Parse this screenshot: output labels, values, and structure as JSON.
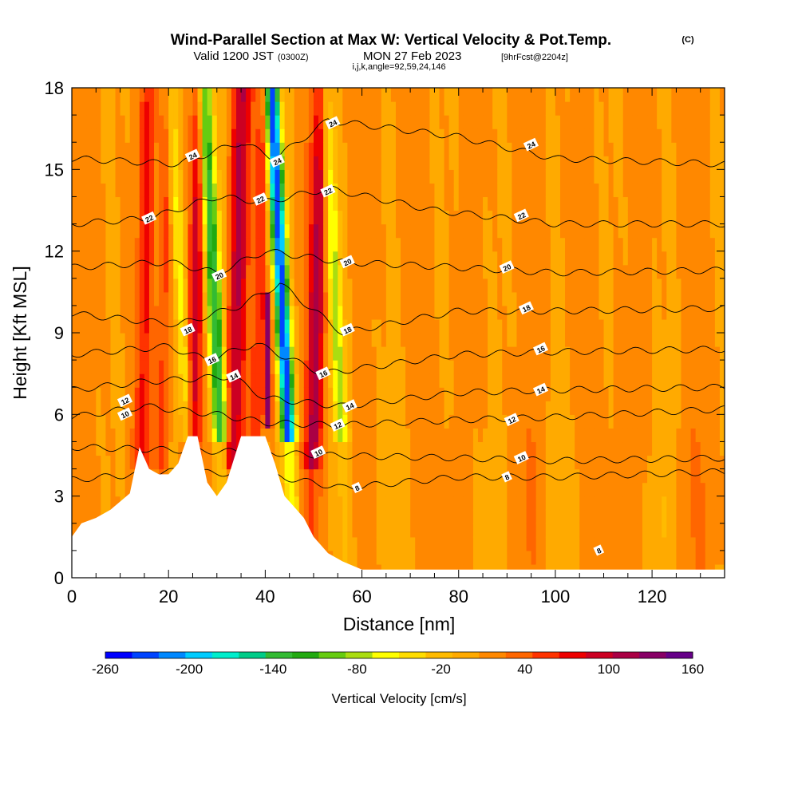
{
  "title": {
    "main": "Wind-Parallel Section at Max W: Vertical Velocity & Pot.Temp.",
    "copyright": "(C)",
    "valid_a": "Valid 1200 JST",
    "valid_b": "(0300Z)",
    "valid_c": "MON 27 Feb 2023",
    "valid_d": "[9hrFcst@2204z]",
    "params": "i,j,k,angle=92,59,24,146"
  },
  "chart_data": {
    "type": "heatmap",
    "xlabel": "Distance [nm]",
    "ylabel": "Height [Kft MSL]",
    "xlim": [
      0,
      135
    ],
    "ylim": [
      0,
      18
    ],
    "x_ticks": [
      0,
      20,
      40,
      60,
      80,
      100,
      120
    ],
    "y_ticks": [
      0,
      3,
      6,
      9,
      12,
      15,
      18
    ],
    "x_tick_labels": [
      "0",
      "20",
      "40",
      "60",
      "80",
      "100",
      "120"
    ],
    "y_tick_labels": [
      "0",
      "3",
      "6",
      "9",
      "12",
      "15",
      "18"
    ],
    "field": "Vertical Velocity",
    "background_velocity": 10,
    "updraft_bands": [
      {
        "center": 15,
        "width": 1.6,
        "amp": 55
      },
      {
        "center": 19,
        "width": 1.4,
        "amp": 45
      },
      {
        "center": 25.5,
        "width": 1.4,
        "amp": 80
      },
      {
        "center": 34,
        "width": 2.0,
        "amp": 95
      },
      {
        "center": 38.5,
        "width": 1.2,
        "amp": 50
      },
      {
        "center": 50.5,
        "width": 1.8,
        "amp": 100
      }
    ],
    "downdraft_bands": [
      {
        "center": 22,
        "width": 1.3,
        "amp": 60
      },
      {
        "center": 29,
        "width": 1.6,
        "amp": 150
      },
      {
        "center": 43,
        "width": 1.5,
        "amp": 240
      },
      {
        "center": 54,
        "width": 1.4,
        "amp": 90
      }
    ],
    "strong_updraft_core": {
      "x": 40.5,
      "y_from": 5.5,
      "y_to": 10.5,
      "value": 160
    },
    "terrain_height_kft": [
      [
        0,
        1.5
      ],
      [
        2,
        2.0
      ],
      [
        5,
        2.2
      ],
      [
        8,
        2.5
      ],
      [
        10,
        2.8
      ],
      [
        12,
        3.1
      ],
      [
        14,
        4.8
      ],
      [
        16,
        4.0
      ],
      [
        18,
        3.8
      ],
      [
        20,
        3.8
      ],
      [
        22,
        4.2
      ],
      [
        24,
        5.2
      ],
      [
        26,
        5.2
      ],
      [
        28,
        3.5
      ],
      [
        30,
        3.0
      ],
      [
        32,
        3.5
      ],
      [
        35,
        5.2
      ],
      [
        40,
        5.2
      ],
      [
        42,
        4.2
      ],
      [
        44,
        3.0
      ],
      [
        46,
        2.6
      ],
      [
        48,
        2.2
      ],
      [
        50,
        1.5
      ],
      [
        53,
        0.9
      ],
      [
        56,
        0.6
      ],
      [
        60,
        0.3
      ],
      [
        135,
        0.3
      ]
    ],
    "theta_contours": [
      {
        "value": 8,
        "heights": [
          [
            0,
            3.6
          ],
          [
            20,
            3.9
          ],
          [
            40,
            3.8
          ],
          [
            56,
            3.3
          ],
          [
            80,
            3.7
          ],
          [
            100,
            3.7
          ],
          [
            135,
            3.9
          ]
        ]
      },
      {
        "value": 10,
        "heights": [
          [
            0,
            4.8
          ],
          [
            20,
            4.7
          ],
          [
            40,
            4.6
          ],
          [
            52,
            4.5
          ],
          [
            80,
            4.4
          ],
          [
            100,
            4.3
          ],
          [
            135,
            4.4
          ]
        ]
      },
      {
        "value": 12,
        "heights": [
          [
            0,
            5.9
          ],
          [
            15,
            6.3
          ],
          [
            30,
            6.0
          ],
          [
            40,
            5.7
          ],
          [
            55,
            5.6
          ],
          [
            80,
            5.8
          ],
          [
            100,
            5.9
          ],
          [
            135,
            6.2
          ]
        ]
      },
      {
        "value": 14,
        "heights": [
          [
            0,
            6.9
          ],
          [
            15,
            7.2
          ],
          [
            33,
            7.4
          ],
          [
            40,
            6.6
          ],
          [
            56,
            6.3
          ],
          [
            80,
            6.8
          ],
          [
            100,
            6.9
          ],
          [
            135,
            7.0
          ]
        ]
      },
      {
        "value": 16,
        "heights": [
          [
            0,
            8.2
          ],
          [
            20,
            8.5
          ],
          [
            28,
            8.0
          ],
          [
            38,
            8.6
          ],
          [
            52,
            7.5
          ],
          [
            80,
            8.2
          ],
          [
            100,
            8.3
          ],
          [
            135,
            8.4
          ]
        ]
      },
      {
        "value": 18,
        "heights": [
          [
            0,
            9.7
          ],
          [
            22,
            9.3
          ],
          [
            35,
            10.0
          ],
          [
            43,
            10.8
          ],
          [
            56,
            9.0
          ],
          [
            80,
            9.8
          ],
          [
            100,
            9.8
          ],
          [
            135,
            9.9
          ]
        ]
      },
      {
        "value": 20,
        "heights": [
          [
            0,
            11.4
          ],
          [
            20,
            11.6
          ],
          [
            30,
            11.2
          ],
          [
            40,
            12.0
          ],
          [
            56,
            11.6
          ],
          [
            80,
            11.4
          ],
          [
            100,
            11.2
          ],
          [
            135,
            11.3
          ]
        ]
      },
      {
        "value": 22,
        "heights": [
          [
            0,
            13.0
          ],
          [
            16,
            13.2
          ],
          [
            30,
            14.0
          ],
          [
            40,
            13.8
          ],
          [
            53,
            14.3
          ],
          [
            75,
            13.5
          ],
          [
            100,
            13.0
          ],
          [
            135,
            13.0
          ]
        ]
      },
      {
        "value": 24,
        "heights": [
          [
            0,
            15.4
          ],
          [
            22,
            15.2
          ],
          [
            35,
            16.0
          ],
          [
            42,
            15.4
          ],
          [
            53,
            16.8
          ],
          [
            80,
            16.2
          ],
          [
            100,
            15.4
          ],
          [
            135,
            15.2
          ]
        ]
      }
    ],
    "contour_labels": [
      {
        "text": "24",
        "x": 25,
        "y": 15.5
      },
      {
        "text": "24",
        "x": 42.5,
        "y": 15.3
      },
      {
        "text": "24",
        "x": 54,
        "y": 16.7
      },
      {
        "text": "24",
        "x": 95,
        "y": 15.9
      },
      {
        "text": "22",
        "x": 16,
        "y": 13.2
      },
      {
        "text": "22",
        "x": 39,
        "y": 13.9
      },
      {
        "text": "22",
        "x": 53,
        "y": 14.2
      },
      {
        "text": "22",
        "x": 93,
        "y": 13.3
      },
      {
        "text": "20",
        "x": 30.5,
        "y": 11.1
      },
      {
        "text": "20",
        "x": 57,
        "y": 11.6
      },
      {
        "text": "20",
        "x": 90,
        "y": 11.4
      },
      {
        "text": "18",
        "x": 24,
        "y": 9.1
      },
      {
        "text": "18",
        "x": 57,
        "y": 9.1
      },
      {
        "text": "18",
        "x": 94,
        "y": 9.9
      },
      {
        "text": "16",
        "x": 29,
        "y": 8.0
      },
      {
        "text": "16",
        "x": 52,
        "y": 7.5
      },
      {
        "text": "16",
        "x": 97,
        "y": 8.4
      },
      {
        "text": "14",
        "x": 33.5,
        "y": 7.4
      },
      {
        "text": "14",
        "x": 57.5,
        "y": 6.3
      },
      {
        "text": "14",
        "x": 97,
        "y": 6.9
      },
      {
        "text": "12",
        "x": 11,
        "y": 6.5
      },
      {
        "text": "12",
        "x": 55,
        "y": 5.6
      },
      {
        "text": "12",
        "x": 91,
        "y": 5.8
      },
      {
        "text": "10",
        "x": 11,
        "y": 6.0
      },
      {
        "text": "10",
        "x": 51,
        "y": 4.6
      },
      {
        "text": "10",
        "x": 93,
        "y": 4.4
      },
      {
        "text": "8",
        "x": 59,
        "y": 3.3
      },
      {
        "text": "8",
        "x": 90,
        "y": 3.7
      },
      {
        "text": "8",
        "x": 109,
        "y": 1.0
      }
    ],
    "colorbar": {
      "title": "Vertical Velocity [cm/s]",
      "min": -260,
      "max": 160,
      "tick_labels": [
        "-260",
        "-200",
        "-140",
        "-80",
        "-20",
        "40",
        "100",
        "160"
      ],
      "tick_values": [
        -260,
        -200,
        -140,
        -80,
        -20,
        40,
        100,
        160
      ],
      "colors": [
        "#0000ff",
        "#0044ff",
        "#0088ff",
        "#00ccff",
        "#00eecc",
        "#00cc88",
        "#33bb33",
        "#22aa11",
        "#66cc11",
        "#aadd11",
        "#ffff00",
        "#ffdd00",
        "#ffbb00",
        "#ffaa00",
        "#ff8800",
        "#ff6600",
        "#ff3300",
        "#ee0000",
        "#cc0022",
        "#aa0044",
        "#880066",
        "#660088"
      ]
    }
  }
}
